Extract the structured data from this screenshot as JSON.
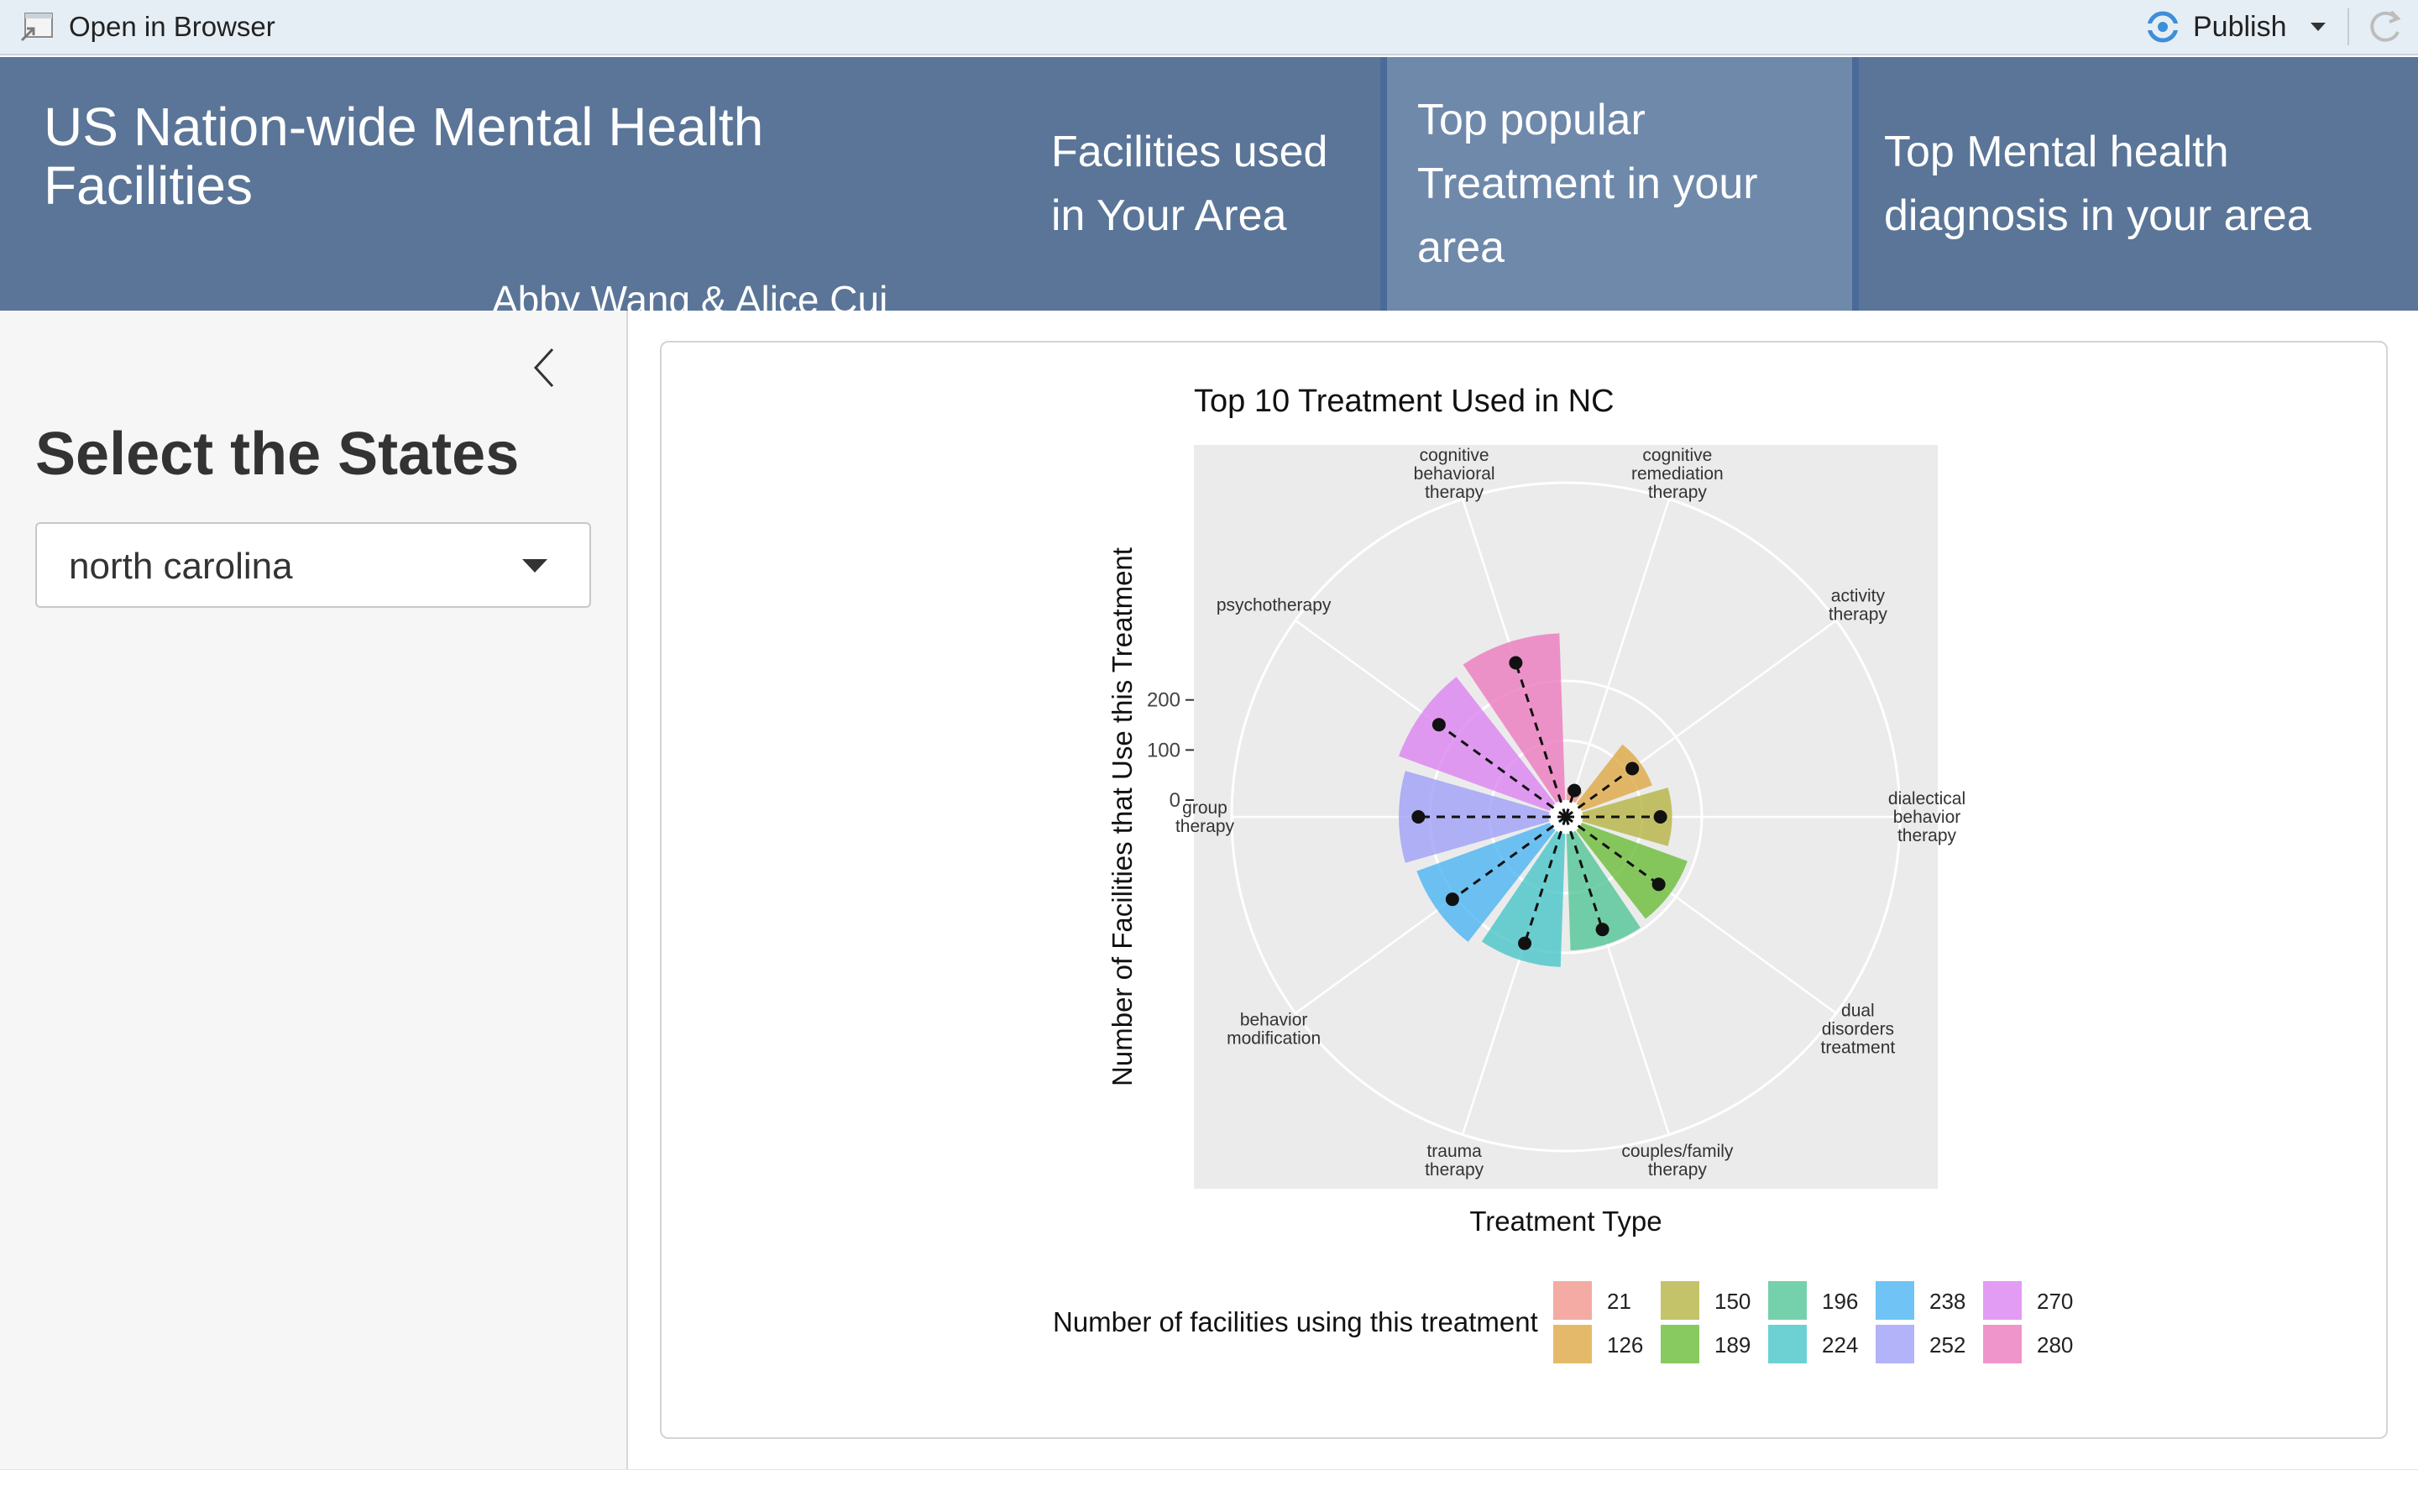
{
  "toolbar": {
    "open_browser_label": "Open in Browser",
    "publish_label": "Publish"
  },
  "header": {
    "title": "US Nation-wide Mental Health Facilities",
    "authors": "Abby Wang & Alice Cui",
    "tabs": [
      {
        "label_lines": [
          "Facilities used",
          "in Your Area"
        ],
        "active": false
      },
      {
        "label_lines": [
          "Top popular",
          "Treatment in your",
          "area"
        ],
        "active": true
      },
      {
        "label_lines": [
          "Top Mental health",
          "diagnosis in your area"
        ],
        "active": false
      }
    ]
  },
  "sidebar": {
    "title": "Select the States",
    "state_select": {
      "value": "north carolina"
    }
  },
  "chart_data": {
    "type": "polar-bar",
    "title": "Top 10 Treatment Used in NC",
    "xlabel": "Treatment Type",
    "ylabel": "Number of Facilities that Use this Treatment",
    "yticks": [
      0,
      100,
      200
    ],
    "legend_title": "Number of facilities using this treatment",
    "legend_entries": [
      21,
      126,
      150,
      189,
      196,
      224,
      238,
      252,
      270,
      280
    ],
    "categories": [
      {
        "label": "cognitive remediation therapy",
        "value": 21,
        "color": "#f0938a"
      },
      {
        "label": "activity therapy",
        "value": 126,
        "color": "#dca640"
      },
      {
        "label": "dialectical behavior therapy",
        "value": 150,
        "color": "#b5b240"
      },
      {
        "label": "dual disorders treatment",
        "value": 189,
        "color": "#66bb33"
      },
      {
        "label": "couples/family therapy",
        "value": 196,
        "color": "#4ec493"
      },
      {
        "label": "trauma therapy",
        "value": 224,
        "color": "#44c4c8"
      },
      {
        "label": "behavior modification",
        "value": 238,
        "color": "#46b2f2"
      },
      {
        "label": "group therapy",
        "value": 252,
        "color": "#9c9ef6"
      },
      {
        "label": "psychotherapy",
        "value": 270,
        "color": "#db80f0"
      },
      {
        "label": "cognitive behavioral therapy",
        "value": 280,
        "color": "#ec77bd"
      }
    ]
  }
}
